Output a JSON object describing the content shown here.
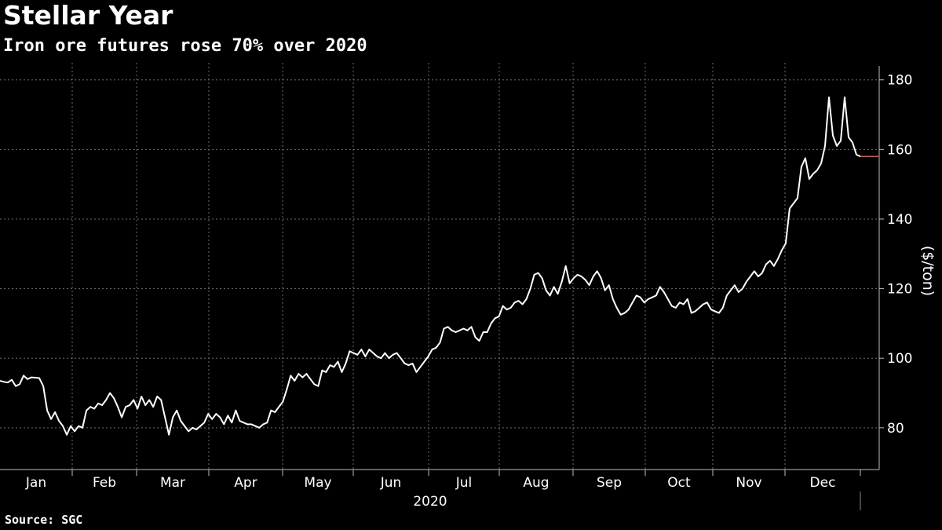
{
  "header": {
    "title": "Stellar Year",
    "subtitle": "Iron ore futures rose 70% over 2020"
  },
  "footer": {
    "source": "Source: SGC"
  },
  "colors": {
    "background": "#000000",
    "line": "#ffffff",
    "grid": "#6e6e6e",
    "last_value_marker": "#e8503a"
  },
  "chart_data": {
    "type": "line",
    "title": "Stellar Year",
    "subtitle": "Iron ore futures rose 70% over 2020",
    "ylabel": "($/ton)",
    "xlabel": "2020",
    "ylim": [
      68,
      184
    ],
    "y_ticks": [
      80,
      100,
      120,
      140,
      160,
      180
    ],
    "y_axis_position": "right",
    "x_ticks": [
      "Jan",
      "Feb",
      "Mar",
      "Apr",
      "May",
      "Jun",
      "Jul",
      "Aug",
      "Sep",
      "Oct",
      "Nov",
      "Dec"
    ],
    "grid": true,
    "series": [
      {
        "values": [
          93.5,
          93.2,
          93.0,
          93.8,
          92.0,
          92.5,
          95.0,
          94.0,
          94.5,
          94.4,
          94.3,
          92.0,
          85.0,
          82.5,
          84.5,
          82.0,
          80.5,
          78.0,
          80.5,
          79.0,
          80.5,
          80.0,
          85.0,
          86.0,
          85.5,
          87.0,
          86.5,
          88.0,
          90.0,
          88.5,
          86.0,
          83.0,
          86.0,
          86.5,
          88.0,
          85.5,
          89.0,
          86.5,
          88.0,
          86.0,
          89.0,
          88.0,
          83.0,
          78.0,
          83.0,
          85.0,
          82.0,
          80.5,
          79.0,
          80.0,
          79.5,
          80.5,
          81.5,
          84.0,
          82.5,
          84.0,
          83.0,
          81.0,
          83.5,
          81.5,
          85.0,
          82.0,
          81.5,
          81.0,
          81.0,
          80.5,
          80.0,
          81.0,
          81.5,
          85.0,
          84.5,
          86.0,
          87.5,
          91.0,
          95.0,
          93.5,
          95.5,
          94.5,
          95.5,
          94.0,
          92.5,
          92.0,
          96.5,
          96.0,
          98.0,
          97.5,
          99.0,
          96.0,
          98.5,
          102.0,
          101.5,
          101.0,
          102.5,
          100.5,
          102.5,
          101.5,
          100.5,
          100.0,
          101.5,
          100.0,
          101.0,
          101.5,
          100.0,
          98.5,
          98.0,
          98.5,
          96.0,
          97.5,
          99.0,
          100.5,
          102.5,
          103.0,
          104.5,
          108.5,
          109.0,
          108.0,
          107.5,
          108.0,
          108.5,
          108.0,
          109.0,
          106.0,
          105.0,
          107.5,
          107.5,
          110.0,
          111.5,
          112.0,
          115.0,
          114.0,
          114.5,
          116.0,
          116.5,
          115.5,
          117.0,
          120.0,
          124.0,
          124.5,
          123.0,
          119.5,
          118.0,
          120.5,
          118.5,
          122.0,
          126.5,
          121.5,
          123.0,
          124.0,
          123.5,
          122.5,
          121.0,
          123.5,
          125.0,
          123.0,
          119.5,
          121.0,
          117.0,
          114.5,
          112.5,
          113.0,
          114.0,
          116.0,
          118.0,
          117.5,
          116.0,
          117.0,
          117.5,
          118.0,
          120.5,
          119.0,
          117.0,
          115.0,
          114.5,
          116.0,
          115.5,
          117.0,
          113.0,
          113.5,
          114.5,
          115.5,
          116.0,
          114.0,
          113.5,
          113.0,
          114.5,
          118.0,
          119.5,
          121.0,
          119.0,
          120.0,
          122.0,
          123.5,
          125.0,
          123.5,
          124.5,
          127.0,
          128.0,
          126.5,
          128.5,
          131.0,
          133.0,
          143.0,
          144.5,
          146.0,
          155.0,
          157.5,
          151.5,
          153.0,
          154.0,
          156.0,
          161.0,
          175.0,
          164.0,
          161.0,
          162.5,
          175.0,
          163.5,
          162.0,
          158.5,
          158.0
        ]
      }
    ],
    "last_value": 158.0
  }
}
